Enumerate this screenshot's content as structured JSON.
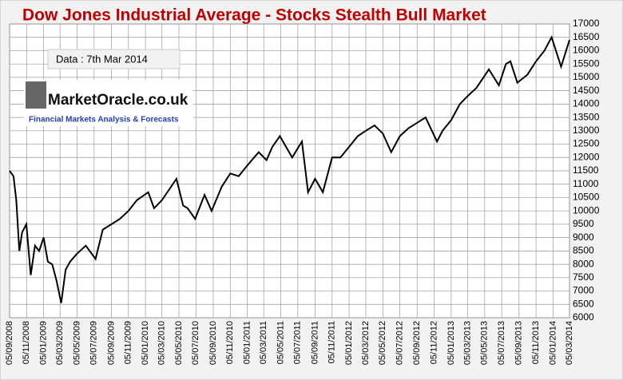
{
  "chart_data": {
    "type": "line",
    "title": "Dow Jones Industrial Average  - Stocks Stealth Bull Market",
    "annotation": "Data : 7th Mar 2014",
    "logo": {
      "name": "MarketOracle.co.uk",
      "tagline": "Financial Markets Analysis & Forecasts"
    },
    "x": [
      "05/09/2008",
      "19/09/2008",
      "29/09/2008",
      "10/10/2008",
      "20/10/2008",
      "04/11/2008",
      "20/11/2008",
      "05/12/2008",
      "20/12/2008",
      "05/01/2009",
      "20/01/2009",
      "05/02/2009",
      "20/02/2009",
      "09/03/2009",
      "25/03/2009",
      "10/04/2009",
      "05/05/2009",
      "05/06/2009",
      "10/07/2009",
      "05/08/2009",
      "05/09/2009",
      "05/10/2009",
      "05/11/2009",
      "05/12/2009",
      "15/01/2010",
      "05/02/2010",
      "05/03/2010",
      "26/04/2010",
      "20/05/2010",
      "05/06/2010",
      "02/07/2010",
      "05/08/2010",
      "30/08/2010",
      "05/10/2010",
      "05/11/2010",
      "05/12/2010",
      "05/01/2011",
      "15/02/2011",
      "15/03/2011",
      "05/04/2011",
      "02/05/2011",
      "15/06/2011",
      "20/07/2011",
      "11/08/2011",
      "05/09/2011",
      "03/10/2011",
      "05/11/2011",
      "05/12/2011",
      "05/01/2012",
      "05/02/2012",
      "05/03/2012",
      "05/04/2012",
      "05/05/2012",
      "04/06/2012",
      "05/07/2012",
      "05/08/2012",
      "05/09/2012",
      "05/10/2012",
      "15/11/2012",
      "05/12/2012",
      "05/01/2013",
      "05/02/2013",
      "05/03/2013",
      "05/04/2013",
      "20/05/2013",
      "25/06/2013",
      "20/07/2013",
      "05/08/2013",
      "30/08/2013",
      "05/10/2013",
      "05/11/2013",
      "05/12/2013",
      "31/12/2013",
      "03/02/2014",
      "05/03/2014"
    ],
    "series": [
      {
        "name": "DJIA",
        "color": "#000000",
        "values": [
          11500,
          11300,
          10400,
          8500,
          9200,
          9500,
          7600,
          8700,
          8500,
          9000,
          8100,
          8000,
          7400,
          6550,
          7800,
          8100,
          8400,
          8700,
          8200,
          9300,
          9500,
          9700,
          10000,
          10400,
          10700,
          10100,
          10400,
          11200,
          10200,
          10100,
          9700,
          10600,
          10000,
          10900,
          11400,
          11300,
          11700,
          12200,
          11900,
          12400,
          12800,
          12000,
          12600,
          10700,
          11200,
          10700,
          12000,
          12000,
          12400,
          12800,
          13000,
          13200,
          12900,
          12200,
          12800,
          13100,
          13300,
          13500,
          12600,
          13000,
          13400,
          14000,
          14300,
          14600,
          15300,
          14700,
          15500,
          15600,
          14800,
          15100,
          15600,
          16000,
          16500,
          15400,
          16400
        ]
      }
    ],
    "xlim": [
      "05/09/2008",
      "05/03/2014"
    ],
    "xticks": [
      "05/09/2008",
      "05/11/2008",
      "05/01/2009",
      "05/03/2009",
      "05/05/2009",
      "05/07/2009",
      "05/09/2009",
      "05/11/2009",
      "05/01/2010",
      "05/03/2010",
      "05/05/2010",
      "05/07/2010",
      "05/09/2010",
      "05/11/2010",
      "05/01/2011",
      "05/03/2011",
      "05/05/2011",
      "05/07/2011",
      "05/09/2011",
      "05/11/2011",
      "05/01/2012",
      "05/03/2012",
      "05/05/2012",
      "05/07/2012",
      "05/09/2012",
      "05/11/2012",
      "05/01/2013",
      "05/03/2013",
      "05/05/2013",
      "05/07/2013",
      "05/09/2013",
      "05/11/2013",
      "05/01/2014",
      "05/03/2014"
    ],
    "ylim": [
      6000,
      17000
    ],
    "yticks": [
      6000,
      6500,
      7000,
      7500,
      8000,
      8500,
      9000,
      9500,
      10000,
      10500,
      11000,
      11500,
      12000,
      12500,
      13000,
      13500,
      14000,
      14500,
      15000,
      15500,
      16000,
      16500,
      17000
    ],
    "grid": true
  }
}
